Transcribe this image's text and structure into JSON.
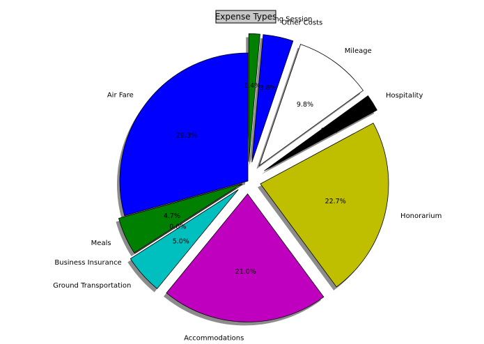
{
  "chart_data": {
    "type": "pie",
    "title": "Expense Types",
    "slices": [
      {
        "label": "Working Session",
        "value": 1.4,
        "pct_label": "1.4%",
        "color": "#008000",
        "explode": 0.15
      },
      {
        "label": "Other Costs",
        "value": 3.8,
        "pct_label": "3.8%",
        "color": "#0000ff",
        "explode": 0.15
      },
      {
        "label": "Mileage",
        "value": 9.8,
        "pct_label": "9.8%",
        "color": "#ffffff",
        "explode": 0.15
      },
      {
        "label": "Hospitality",
        "value": 2.1,
        "pct_label": "2.1%",
        "color": "#000000",
        "explode": 0.15
      },
      {
        "label": "Honorarium",
        "value": 22.7,
        "pct_label": "22.7%",
        "color": "#bfbf00",
        "explode": 0.1
      },
      {
        "label": "Accommodations",
        "value": 21.0,
        "pct_label": "21.0%",
        "color": "#bf00bf",
        "explode": 0.1
      },
      {
        "label": "Ground Transportation",
        "value": 5.0,
        "pct_label": "5.0%",
        "color": "#00bfbf",
        "explode": 0.1
      },
      {
        "label": "Business Insurance",
        "value": 0.0,
        "pct_label": "0.0%",
        "color": "#ff0000",
        "explode": 0.05
      },
      {
        "label": "Meals",
        "value": 4.7,
        "pct_label": "4.7%",
        "color": "#008000",
        "explode": 0.05
      },
      {
        "label": "Air Fare",
        "value": 29.3,
        "pct_label": "29.3%",
        "color": "#0000ff",
        "explode": 0.0
      }
    ],
    "start_angle_deg": 90,
    "direction": "clockwise",
    "shadow": true,
    "legend": false
  }
}
